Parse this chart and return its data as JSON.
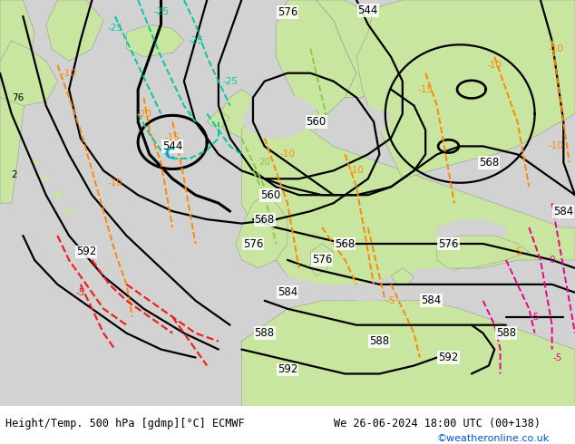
{
  "title_left": "Height/Temp. 500 hPa [gdmp][°C] ECMWF",
  "title_right": "We 26-06-2024 18:00 UTC (00+138)",
  "watermark": "©weatheronline.co.uk",
  "watermark_color": "#0055cc",
  "figsize": [
    6.34,
    4.9
  ],
  "dpi": 100,
  "bg_ocean": "#d2d2d2",
  "bg_land": "#c8e6a0",
  "bg_outer_green": "#a8cc80"
}
